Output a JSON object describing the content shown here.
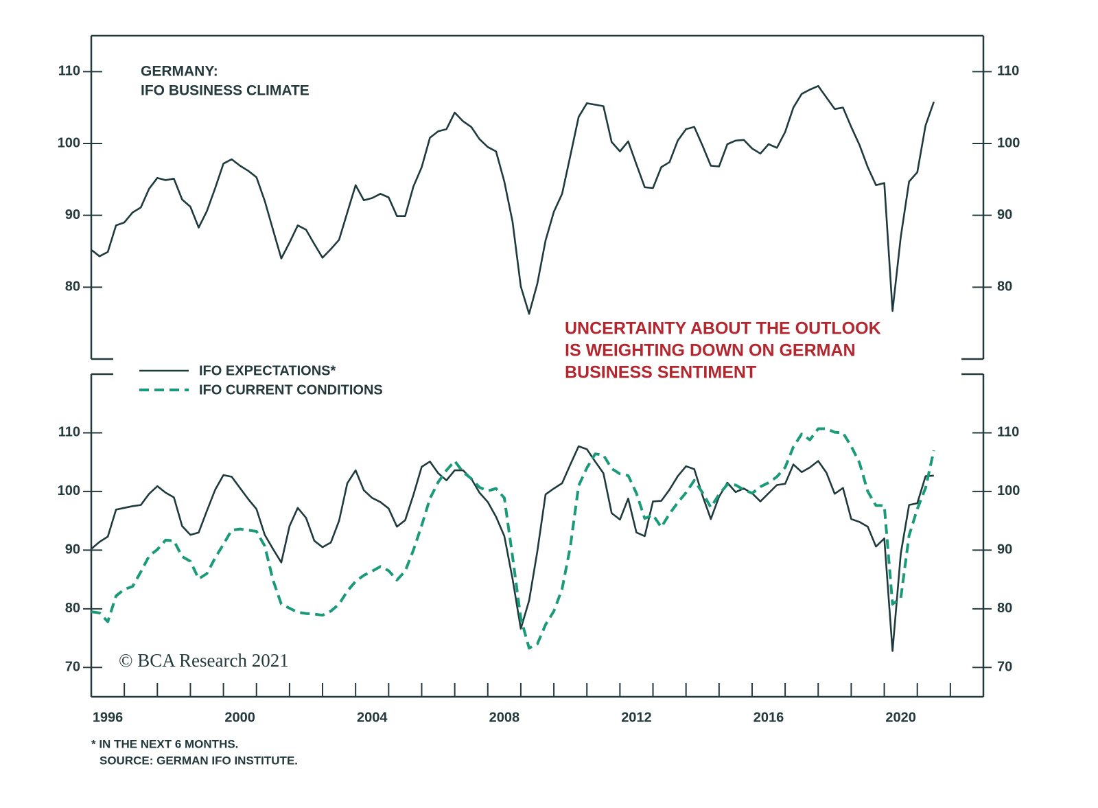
{
  "chart_data": [
    {
      "type": "line",
      "title": [
        "GERMANY:",
        "IFO BUSINESS CLIMATE"
      ],
      "annotation": [
        "UNCERTAINTY ABOUT THE OUTLOOK",
        "IS WEIGHTING DOWN ON GERMAN",
        "BUSINESS SENTIMENT"
      ],
      "x": [
        1996,
        1996.25,
        1996.5,
        1996.75,
        1997,
        1997.25,
        1997.5,
        1997.75,
        1998,
        1998.25,
        1998.5,
        1998.75,
        1999,
        1999.25,
        1999.5,
        1999.75,
        2000,
        2000.25,
        2000.5,
        2000.75,
        2001,
        2001.25,
        2001.5,
        2001.75,
        2002,
        2002.25,
        2002.5,
        2002.75,
        2003,
        2003.25,
        2003.5,
        2003.75,
        2004,
        2004.25,
        2004.5,
        2004.75,
        2005,
        2005.25,
        2005.5,
        2005.75,
        2006,
        2006.25,
        2006.5,
        2006.75,
        2007,
        2007.25,
        2007.5,
        2007.75,
        2008,
        2008.25,
        2008.5,
        2008.75,
        2009,
        2009.25,
        2009.5,
        2009.75,
        2010,
        2010.25,
        2010.5,
        2010.75,
        2011,
        2011.25,
        2011.5,
        2011.75,
        2012,
        2012.25,
        2012.5,
        2012.75,
        2013,
        2013.25,
        2013.5,
        2013.75,
        2014,
        2014.25,
        2014.5,
        2014.75,
        2015,
        2015.25,
        2015.5,
        2015.75,
        2016,
        2016.25,
        2016.5,
        2016.75,
        2017,
        2017.25,
        2017.5,
        2017.75,
        2018,
        2018.25,
        2018.5,
        2018.75,
        2019,
        2019.25,
        2019.5,
        2019.75,
        2020,
        2020.25,
        2020.5,
        2020.75,
        2021,
        2021.25,
        2021.5
      ],
      "values": [
        85.2,
        84.3,
        84.9,
        88.6,
        89.0,
        90.4,
        91.1,
        93.7,
        95.2,
        94.9,
        95.1,
        92.2,
        91.2,
        88.3,
        90.6,
        93.8,
        97.2,
        97.8,
        96.9,
        96.2,
        95.3,
        92.0,
        88.0,
        84.0,
        86.2,
        88.6,
        88.0,
        86.0,
        84.1,
        85.3,
        86.6,
        90.4,
        94.2,
        92.1,
        92.4,
        93.0,
        92.5,
        89.9,
        89.9,
        94.0,
        96.7,
        100.8,
        101.7,
        102.0,
        104.3,
        103.1,
        102.3,
        100.6,
        99.5,
        98.9,
        94.7,
        89.1,
        80.1,
        76.3,
        80.5,
        86.5,
        90.5,
        93.0,
        98.3,
        103.7,
        105.6,
        105.4,
        105.2,
        100.2,
        98.9,
        100.3,
        97.1,
        93.9,
        93.8,
        96.7,
        97.4,
        100.4,
        102.0,
        102.3,
        99.7,
        96.9,
        96.8,
        99.9,
        100.4,
        100.5,
        99.3,
        98.6,
        99.9,
        99.4,
        101.6,
        105.0,
        106.9,
        107.5,
        108.0,
        106.4,
        104.8,
        105.0,
        102.3,
        99.8,
        96.7,
        94.2,
        94.5,
        76.7,
        87.0,
        94.7,
        96.0,
        102.5,
        105.8
      ],
      "color": "#1e3a3d",
      "xlim": [
        1996,
        2023
      ],
      "ylim": [
        70,
        115
      ],
      "yticks": [
        80,
        90,
        100,
        110
      ]
    },
    {
      "type": "line",
      "x": [
        1996,
        1996.25,
        1996.5,
        1996.75,
        1997,
        1997.25,
        1997.5,
        1997.75,
        1998,
        1998.25,
        1998.5,
        1998.75,
        1999,
        1999.25,
        1999.5,
        1999.75,
        2000,
        2000.25,
        2000.5,
        2000.75,
        2001,
        2001.25,
        2001.5,
        2001.75,
        2002,
        2002.25,
        2002.5,
        2002.75,
        2003,
        2003.25,
        2003.5,
        2003.75,
        2004,
        2004.25,
        2004.5,
        2004.75,
        2005,
        2005.25,
        2005.5,
        2005.75,
        2006,
        2006.25,
        2006.5,
        2006.75,
        2007,
        2007.25,
        2007.5,
        2007.75,
        2008,
        2008.25,
        2008.5,
        2008.75,
        2009,
        2009.25,
        2009.5,
        2009.75,
        2010,
        2010.25,
        2010.5,
        2010.75,
        2011,
        2011.25,
        2011.5,
        2011.75,
        2012,
        2012.25,
        2012.5,
        2012.75,
        2013,
        2013.25,
        2013.5,
        2013.75,
        2014,
        2014.25,
        2014.5,
        2014.75,
        2015,
        2015.25,
        2015.5,
        2015.75,
        2016,
        2016.25,
        2016.5,
        2016.75,
        2017,
        2017.25,
        2017.5,
        2017.75,
        2018,
        2018.25,
        2018.5,
        2018.75,
        2019,
        2019.25,
        2019.5,
        2019.75,
        2020,
        2020.25,
        2020.5,
        2020.75,
        2021,
        2021.25,
        2021.5
      ],
      "series": [
        {
          "name": "IFO EXPECTATIONS*",
          "color": "#1e3a3d",
          "line_style": "solid",
          "values": [
            90.2,
            91.4,
            92.3,
            96.9,
            97.2,
            97.5,
            97.7,
            99.6,
            100.9,
            99.8,
            99.0,
            94.1,
            92.6,
            93.0,
            96.7,
            100.3,
            102.8,
            102.5,
            100.6,
            98.7,
            97.0,
            92.6,
            90.2,
            87.9,
            94.1,
            97.2,
            95.5,
            91.6,
            90.5,
            91.3,
            95.0,
            101.4,
            103.6,
            100.2,
            98.9,
            98.2,
            97.1,
            94.0,
            95.1,
            99.4,
            104.2,
            105.1,
            103.1,
            101.9,
            103.6,
            103.6,
            102.2,
            99.8,
            98.2,
            95.7,
            92.4,
            85.1,
            76.6,
            81.4,
            89.8,
            99.5,
            100.5,
            101.4,
            104.6,
            107.7,
            107.2,
            105.1,
            103.1,
            96.3,
            95.2,
            98.8,
            93.0,
            92.4,
            98.3,
            98.4,
            100.3,
            102.6,
            104.3,
            103.8,
            99.3,
            95.3,
            99.1,
            101.5,
            99.9,
            100.5,
            99.7,
            98.3,
            99.7,
            101.1,
            101.3,
            104.6,
            103.3,
            104.1,
            105.2,
            103.2,
            99.6,
            100.6,
            95.3,
            94.8,
            94.0,
            90.6,
            92.0,
            72.8,
            89.4,
            97.7,
            98.0,
            102.6,
            102.7
          ]
        },
        {
          "name": "IFO CURRENT CONDITIONS",
          "color": "#1a9a78",
          "line_style": "dashed",
          "values": [
            79.5,
            79.3,
            77.8,
            82.2,
            83.3,
            83.8,
            86.3,
            89.0,
            90.1,
            91.7,
            91.6,
            88.9,
            88.1,
            85.1,
            86.0,
            88.7,
            91.0,
            93.4,
            93.6,
            93.4,
            93.2,
            90.7,
            84.9,
            80.8,
            80.1,
            79.4,
            79.2,
            79.1,
            78.9,
            79.6,
            80.8,
            83.0,
            84.7,
            85.7,
            86.4,
            87.2,
            86.5,
            84.9,
            86.4,
            90.0,
            94.2,
            98.8,
            101.6,
            103.6,
            105.2,
            103.3,
            102.2,
            100.7,
            100.1,
            100.5,
            98.9,
            88.9,
            78.4,
            73.3,
            74.0,
            77.3,
            79.6,
            83.4,
            90.6,
            101.0,
            104.0,
            106.4,
            106.2,
            103.9,
            103.0,
            102.7,
            99.7,
            95.4,
            96.0,
            93.9,
            96.2,
            98.1,
            99.8,
            101.9,
            99.8,
            97.3,
            99.5,
            101.2,
            101.1,
            100.3,
            99.7,
            100.8,
            101.5,
            102.5,
            104.1,
            107.6,
            109.8,
            108.8,
            110.7,
            110.7,
            110.1,
            110.0,
            107.7,
            104.9,
            100.0,
            97.6,
            97.6,
            80.8,
            81.8,
            92.5,
            97.0,
            100.6,
            107.0
          ]
        }
      ],
      "legend": "top-left",
      "watermark": "© BCA Research 2021",
      "xlim": [
        1996,
        2023
      ],
      "xticks": [
        1996,
        2000,
        2004,
        2008,
        2012,
        2016,
        2020
      ],
      "x_minor_ticks": [
        1997,
        1998,
        1999,
        2000,
        2001,
        2002,
        2003,
        2004,
        2005,
        2006,
        2007,
        2008,
        2009,
        2010,
        2011,
        2012,
        2013,
        2014,
        2015,
        2016,
        2017,
        2018,
        2019,
        2020,
        2021,
        2022
      ],
      "ylim": [
        65,
        120
      ],
      "yticks": [
        70,
        80,
        90,
        100,
        110
      ]
    }
  ],
  "notes": [
    "* IN THE NEXT 6 MONTHS.",
    "SOURCE: GERMAN IFO INSTITUTE."
  ]
}
